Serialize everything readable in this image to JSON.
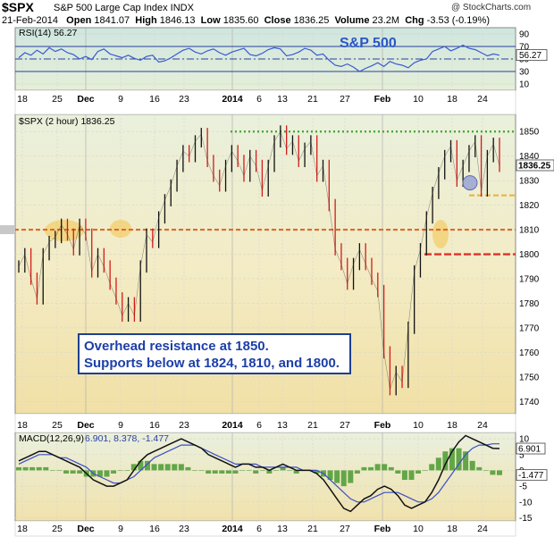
{
  "header": {
    "symbol": "$SPX",
    "description": "S&P 500 Large Cap Index INDX",
    "logo": "@ StockCharts.com",
    "date": "21-Feb-2014",
    "open_label": "Open",
    "open": "1841.07",
    "high_label": "High",
    "high": "1846.13",
    "low_label": "Low",
    "low": "1835.60",
    "close_label": "Close",
    "close": "1836.25",
    "volume_label": "Volume",
    "volume": "23.2M",
    "chg_label": "Chg",
    "chg": "-3.53 (-0.19%)"
  },
  "annotation": {
    "line1": "Overhead resistance at 1850.",
    "line2": "Supports below at 1824, 1810, and 1800."
  },
  "chart_data": [
    {
      "type": "line",
      "panel": "rsi",
      "legend": "RSI(14) 56.27",
      "overlay_text": "S&P 500",
      "ylim": [
        0,
        100
      ],
      "ticks": [
        10,
        30,
        50,
        70,
        90
      ],
      "reference_lines": [
        30,
        50,
        70
      ],
      "last_value_label": "56.27",
      "values": [
        52,
        60,
        56,
        64,
        58,
        68,
        62,
        66,
        60,
        57,
        50,
        54,
        49,
        62,
        66,
        58,
        55,
        52,
        56,
        51,
        48,
        54,
        56,
        45,
        47,
        52,
        58,
        64,
        67,
        61,
        58,
        63,
        66,
        60,
        56,
        61,
        64,
        67,
        57,
        55,
        59,
        65,
        68,
        66,
        55,
        57,
        61,
        67,
        64,
        56,
        58,
        48,
        40,
        38,
        42,
        37,
        30,
        35,
        39,
        44,
        38,
        46,
        42,
        40,
        36,
        44,
        48,
        50,
        62,
        66,
        70,
        63,
        67,
        72,
        67,
        65,
        60,
        55,
        58,
        56
      ]
    },
    {
      "type": "line",
      "panel": "price",
      "legend": "$SPX (2 hour) 1836.25",
      "ylim": [
        1735,
        1857
      ],
      "ticks": [
        1740,
        1750,
        1760,
        1770,
        1780,
        1790,
        1800,
        1810,
        1820,
        1830,
        1840,
        1850
      ],
      "last_value_label": "1836.25",
      "resistance": 1850,
      "supports": [
        1824,
        1810,
        1800
      ],
      "values": [
        1795,
        1800,
        1790,
        1782,
        1800,
        1805,
        1807,
        1812,
        1808,
        1802,
        1812,
        1808,
        1793,
        1800,
        1795,
        1788,
        1782,
        1775,
        1780,
        1775,
        1795,
        1808,
        1805,
        1815,
        1822,
        1828,
        1836,
        1842,
        1840,
        1846,
        1849,
        1838,
        1832,
        1828,
        1836,
        1842,
        1838,
        1832,
        1840,
        1836,
        1826,
        1836,
        1846,
        1850,
        1843,
        1846,
        1838,
        1843,
        1846,
        1832,
        1836,
        1820,
        1802,
        1796,
        1788,
        1796,
        1802,
        1796,
        1790,
        1785,
        1760,
        1745,
        1752,
        1748,
        1770,
        1793,
        1802,
        1815,
        1825,
        1833,
        1840,
        1844,
        1830,
        1836,
        1842,
        1846,
        1826,
        1840,
        1845,
        1836
      ]
    },
    {
      "type": "line",
      "panel": "macd",
      "legend": "MACD(12,26,9) 6.901, 8.378, -1.477",
      "ylim": [
        -16,
        12
      ],
      "ticks": [
        -15,
        -10,
        -5,
        0,
        5,
        10
      ],
      "last_values": [
        "6.901",
        "-1.477"
      ],
      "series": [
        {
          "name": "MACD(12,26,9)",
          "values": [
            3,
            4,
            5,
            6,
            6,
            5,
            4,
            3,
            2,
            1,
            -1,
            -3,
            -4,
            -5,
            -5,
            -4,
            -3,
            0,
            3,
            5,
            6,
            7,
            8,
            9,
            10,
            9,
            8,
            7,
            5,
            4,
            3,
            2,
            1,
            2,
            2,
            1,
            1,
            0,
            1,
            2,
            1,
            0,
            0,
            0,
            -1,
            -3,
            -6,
            -9,
            -12,
            -13,
            -11,
            -9,
            -8,
            -6,
            -5,
            -6,
            -8,
            -11,
            -12,
            -11,
            -10,
            -7,
            -3,
            2,
            6,
            9,
            11,
            10,
            9,
            8,
            7,
            6.9
          ]
        },
        {
          "name": "",
          "values": [
            2,
            3,
            4,
            5,
            5,
            5,
            4,
            4,
            3,
            2,
            1,
            -1,
            -2,
            -3,
            -4,
            -4,
            -3,
            -2,
            0,
            2,
            4,
            5,
            6,
            7,
            8,
            8,
            8,
            7,
            6,
            5,
            4,
            3,
            2,
            2,
            2,
            2,
            1,
            1,
            1,
            1,
            1,
            1,
            0,
            0,
            0,
            -1,
            -3,
            -5,
            -7,
            -9,
            -10,
            -10,
            -9,
            -8,
            -7,
            -7,
            -7,
            -8,
            -9,
            -10,
            -10,
            -9,
            -7,
            -4,
            -1,
            2,
            5,
            7,
            8,
            8,
            8.4,
            8.4
          ]
        }
      ]
    }
  ],
  "x_axis": {
    "labels": [
      "18",
      "25",
      "Dec",
      "9",
      "16",
      "23",
      "2014",
      "6",
      "13",
      "21",
      "27",
      "Feb",
      "10",
      "18",
      "24"
    ]
  }
}
